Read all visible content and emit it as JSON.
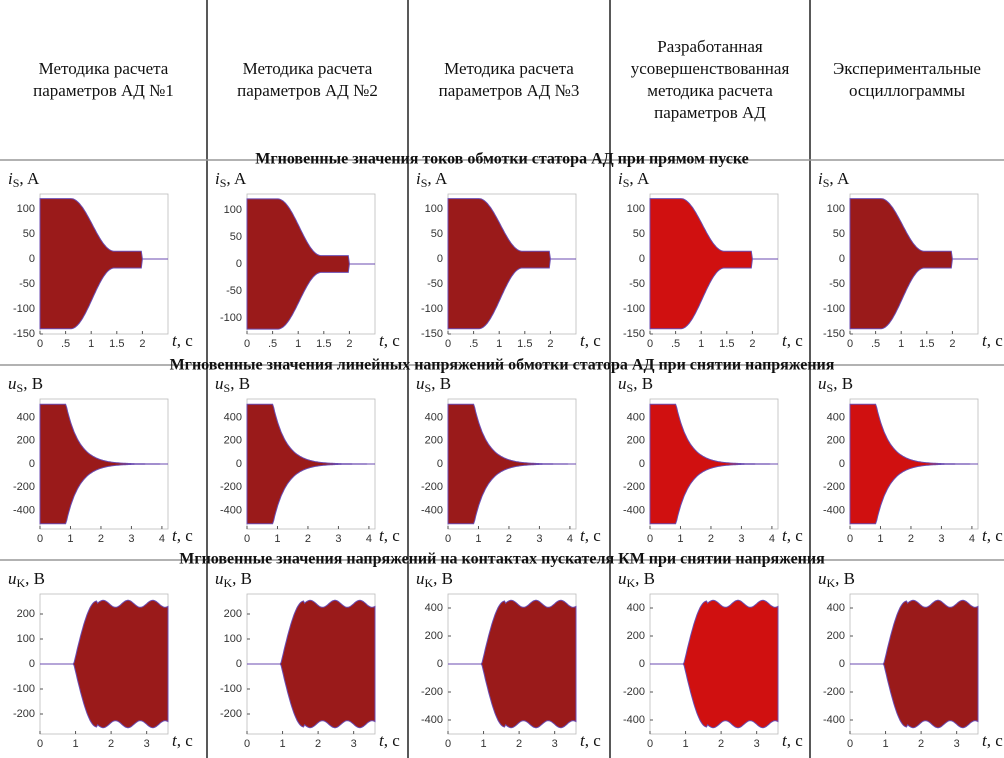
{
  "headers": [
    "Методика расчета параметров АД №1",
    "Методика расчета параметров АД №2",
    "Методика расчета параметров АД №3",
    "Разработанная усовершенствованная методика расчета параметров АД",
    "Экспериментальные осциллограммы"
  ],
  "rows": [
    {
      "title": "Мгновенные значения токов обмотки статора АД при прямом пуске",
      "plots": [
        {
          "y_label": [
            "i",
            "S",
            ", A"
          ],
          "x_label": [
            "t",
            ", c"
          ],
          "xlim": [
            0,
            2.5
          ],
          "ylim": [
            -150,
            130
          ],
          "yticks": [
            100,
            50,
            0,
            -50,
            -100,
            -150
          ],
          "xticks": [
            0,
            {
              "value": 0.5,
              "label": ".5"
            },
            1,
            1.5,
            2
          ]
        },
        {
          "y_label": [
            "i",
            "S",
            ", A"
          ],
          "x_label": [
            "t",
            ", c"
          ],
          "xlim": [
            0,
            2.5
          ],
          "ylim": [
            -130,
            130
          ],
          "yticks": [
            100,
            50,
            0,
            -50,
            -100
          ],
          "xticks": [
            0,
            {
              "value": 0.5,
              "label": ".5"
            },
            1,
            1.5,
            2
          ]
        },
        {
          "y_label": [
            "i",
            "S",
            ", A"
          ],
          "x_label": [
            "t",
            ", c"
          ],
          "xlim": [
            0,
            2.5
          ],
          "ylim": [
            -150,
            130
          ],
          "yticks": [
            100,
            50,
            0,
            -50,
            -100,
            -150
          ],
          "xticks": [
            0,
            {
              "value": 0.5,
              "label": ".5"
            },
            1,
            1.5,
            2
          ]
        },
        {
          "y_label": [
            "i",
            "S",
            ", A"
          ],
          "x_label": [
            "t",
            ", c"
          ],
          "xlim": [
            0,
            2.5
          ],
          "ylim": [
            -150,
            130
          ],
          "yticks": [
            100,
            50,
            0,
            -50,
            -100,
            -150
          ],
          "xticks": [
            0,
            {
              "value": 0.5,
              "label": ".5"
            },
            1,
            1.5,
            2
          ]
        },
        {
          "y_label": [
            "i",
            "S",
            ", A"
          ],
          "x_label": [
            "t",
            ", c"
          ],
          "xlim": [
            0,
            2.5
          ],
          "ylim": [
            -150,
            130
          ],
          "yticks": [
            100,
            50,
            0,
            -50,
            -100,
            -150
          ],
          "xticks": [
            0,
            {
              "value": 0.5,
              "label": ".5"
            },
            1,
            1.5,
            2
          ]
        }
      ]
    },
    {
      "title": "Мгновенные значения линейных напряжений обмотки статора АД при снятии напряжения",
      "plots": [
        {
          "y_label": [
            "u",
            "S",
            ", B"
          ],
          "x_label": [
            "t",
            ", c"
          ],
          "xlim": [
            0,
            4.2
          ],
          "ylim": [
            -560,
            560
          ],
          "yticks": [
            400,
            200,
            0,
            -200,
            -400
          ],
          "xticks": [
            0,
            1,
            2,
            3,
            4
          ]
        },
        {
          "y_label": [
            "u",
            "S",
            ", B"
          ],
          "x_label": [
            "t",
            ", c"
          ],
          "xlim": [
            0,
            4.2
          ],
          "ylim": [
            -560,
            560
          ],
          "yticks": [
            400,
            200,
            0,
            -200,
            -400
          ],
          "xticks": [
            0,
            1,
            2,
            3,
            4
          ]
        },
        {
          "y_label": [
            "u",
            "S",
            ", B"
          ],
          "x_label": [
            "t",
            ", c"
          ],
          "xlim": [
            0,
            4.2
          ],
          "ylim": [
            -560,
            560
          ],
          "yticks": [
            400,
            200,
            0,
            -200,
            -400
          ],
          "xticks": [
            0,
            1,
            2,
            3,
            4
          ]
        },
        {
          "y_label": [
            "u",
            "S",
            ", B"
          ],
          "x_label": [
            "t",
            ", c"
          ],
          "xlim": [
            0,
            4.2
          ],
          "ylim": [
            -560,
            560
          ],
          "yticks": [
            400,
            200,
            0,
            -200,
            -400
          ],
          "xticks": [
            0,
            1,
            2,
            3,
            4
          ]
        },
        {
          "y_label": [
            "u",
            "S",
            ", B"
          ],
          "x_label": [
            "t",
            ", c"
          ],
          "xlim": [
            0,
            4.2
          ],
          "ylim": [
            -560,
            560
          ],
          "yticks": [
            400,
            200,
            0,
            -200,
            -400
          ],
          "xticks": [
            0,
            1,
            2,
            3,
            4
          ]
        }
      ]
    },
    {
      "title": "Мгновенные значения напряжений на контактах пускателя КМ при снятии напряжения",
      "plots": [
        {
          "y_label": [
            "u",
            "K",
            ", B"
          ],
          "x_label": [
            "t",
            ", c"
          ],
          "xlim": [
            0,
            3.6
          ],
          "ylim": [
            -280,
            280
          ],
          "yticks": [
            200,
            100,
            0,
            -100,
            -200
          ],
          "xticks": [
            0,
            1,
            2,
            3
          ]
        },
        {
          "y_label": [
            "u",
            "K",
            ", B"
          ],
          "x_label": [
            "t",
            ", c"
          ],
          "xlim": [
            0,
            3.6
          ],
          "ylim": [
            -280,
            280
          ],
          "yticks": [
            200,
            100,
            0,
            -100,
            -200
          ],
          "xticks": [
            0,
            1,
            2,
            3
          ]
        },
        {
          "y_label": [
            "u",
            "K",
            ", B"
          ],
          "x_label": [
            "t",
            ", c"
          ],
          "xlim": [
            0,
            3.6
          ],
          "ylim": [
            -500,
            500
          ],
          "yticks": [
            400,
            200,
            0,
            -200,
            -400
          ],
          "xticks": [
            0,
            1,
            2,
            3
          ]
        },
        {
          "y_label": [
            "u",
            "K",
            ", B"
          ],
          "x_label": [
            "t",
            ", c"
          ],
          "xlim": [
            0,
            3.6
          ],
          "ylim": [
            -500,
            500
          ],
          "yticks": [
            400,
            200,
            0,
            -200,
            -400
          ],
          "xticks": [
            0,
            1,
            2,
            3
          ]
        },
        {
          "y_label": [
            "u",
            "K",
            ", B"
          ],
          "x_label": [
            "t",
            ", c"
          ],
          "xlim": [
            0,
            3.6
          ],
          "ylim": [
            -500,
            500
          ],
          "yticks": [
            400,
            200,
            0,
            -200,
            -400
          ],
          "xticks": [
            0,
            1,
            2,
            3
          ]
        }
      ]
    }
  ]
}
